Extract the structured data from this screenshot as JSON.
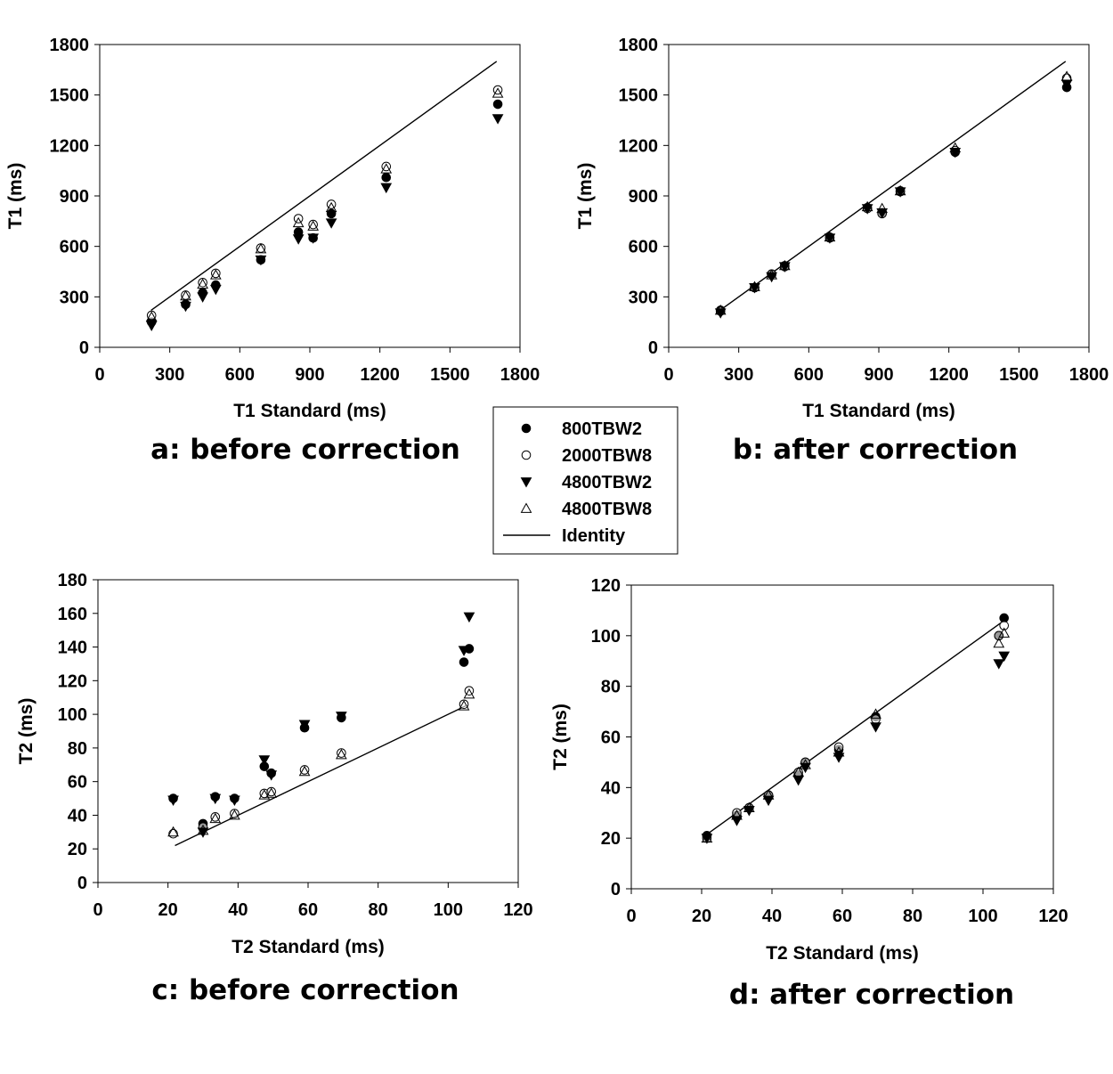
{
  "legend": {
    "entries": [
      {
        "key": "s800w2",
        "label": "800TBW2",
        "marker": "filled-circle"
      },
      {
        "key": "s2000w8",
        "label": "2000TBW8",
        "marker": "open-circle"
      },
      {
        "key": "s4800w2",
        "label": "4800TBW2",
        "marker": "filled-triangle-down"
      },
      {
        "key": "s4800w8",
        "label": "4800TBW8",
        "marker": "open-triangle-up"
      },
      {
        "key": "identity",
        "label": "Identity",
        "marker": "line"
      }
    ]
  },
  "chart_data": [
    {
      "id": "a",
      "type": "scatter",
      "caption": "a: before correction",
      "xlabel": "T1 Standard (ms)",
      "ylabel": "T1 (ms)",
      "xlim": [
        0,
        1800
      ],
      "ylim": [
        0,
        1800
      ],
      "xticks": [
        0,
        300,
        600,
        900,
        1200,
        1500,
        1800
      ],
      "yticks": [
        0,
        300,
        600,
        900,
        1200,
        1500,
        1800
      ],
      "identity": [
        220,
        1700
      ],
      "x": [
        222,
        368,
        441,
        497,
        690,
        851,
        914,
        992,
        1227,
        1705
      ],
      "series": [
        {
          "name": "800TBW2",
          "key": "s800w2",
          "values": [
            150,
            255,
            325,
            370,
            520,
            685,
            650,
            795,
            1010,
            1445
          ]
        },
        {
          "name": "2000TBW8",
          "key": "s2000w8",
          "values": [
            190,
            310,
            385,
            440,
            590,
            765,
            730,
            850,
            1075,
            1530
          ]
        },
        {
          "name": "4800TBW2",
          "key": "s4800w2",
          "values": [
            130,
            245,
            300,
            345,
            520,
            645,
            650,
            740,
            950,
            1360
          ]
        },
        {
          "name": "4800TBW8",
          "key": "s4800w8",
          "values": [
            180,
            305,
            375,
            430,
            585,
            740,
            720,
            830,
            1060,
            1510
          ]
        }
      ]
    },
    {
      "id": "b",
      "type": "scatter",
      "caption": "b: after correction",
      "xlabel": "T1 Standard (ms)",
      "ylabel": "T1 (ms)",
      "xlim": [
        0,
        1800
      ],
      "ylim": [
        0,
        1800
      ],
      "xticks": [
        0,
        300,
        600,
        900,
        1200,
        1500,
        1800
      ],
      "yticks": [
        0,
        300,
        600,
        900,
        1200,
        1500,
        1800
      ],
      "identity": [
        220,
        1700
      ],
      "x": [
        222,
        368,
        441,
        497,
        690,
        851,
        914,
        992,
        1227,
        1705
      ],
      "series": [
        {
          "name": "800TBW2",
          "key": "s800w2",
          "values": [
            220,
            355,
            435,
            485,
            650,
            830,
            800,
            925,
            1160,
            1545
          ]
        },
        {
          "name": "2000TBW8",
          "key": "s2000w8",
          "values": [
            215,
            355,
            435,
            480,
            655,
            825,
            795,
            930,
            1170,
            1600
          ]
        },
        {
          "name": "4800TBW2",
          "key": "s4800w2",
          "values": [
            205,
            355,
            420,
            480,
            650,
            825,
            800,
            925,
            1160,
            1565
          ]
        },
        {
          "name": "4800TBW8",
          "key": "s4800w8",
          "values": [
            220,
            360,
            430,
            485,
            655,
            835,
            825,
            930,
            1185,
            1610
          ]
        }
      ]
    },
    {
      "id": "c",
      "type": "scatter",
      "caption": "c: before correction",
      "xlabel": "T2 Standard (ms)",
      "ylabel": "T2 (ms)",
      "xlim": [
        0,
        120
      ],
      "ylim": [
        0,
        180
      ],
      "xticks": [
        0,
        20,
        40,
        60,
        80,
        100,
        120
      ],
      "yticks": [
        0,
        20,
        40,
        60,
        80,
        100,
        120,
        140,
        160,
        180
      ],
      "identity": [
        22,
        105
      ],
      "x": [
        21.5,
        30,
        33.5,
        39,
        47.5,
        49.5,
        59,
        69.5,
        104.5,
        106
      ],
      "series": [
        {
          "name": "800TBW2",
          "key": "s800w2",
          "values": [
            50,
            35,
            51,
            50,
            69,
            65,
            92,
            98,
            131,
            139
          ]
        },
        {
          "name": "2000TBW8",
          "key": "s2000w8",
          "values": [
            29,
            33,
            39,
            41,
            53,
            54,
            67,
            77,
            106,
            114
          ]
        },
        {
          "name": "4800TBW2",
          "key": "s4800w2",
          "values": [
            49,
            30,
            50,
            49,
            73,
            64,
            94,
            99,
            138,
            158
          ]
        },
        {
          "name": "4800TBW8",
          "key": "s4800w8",
          "values": [
            30,
            31,
            38,
            40,
            52,
            53,
            66,
            76,
            105,
            112
          ]
        }
      ]
    },
    {
      "id": "d",
      "type": "scatter",
      "caption": "d: after correction",
      "xlabel": "T2 Standard (ms)",
      "ylabel": "T2 (ms)",
      "xlim": [
        0,
        120
      ],
      "ylim": [
        0,
        120
      ],
      "xticks": [
        0,
        20,
        40,
        60,
        80,
        100,
        120
      ],
      "yticks": [
        0,
        20,
        40,
        60,
        80,
        100,
        120
      ],
      "identity": [
        22,
        106
      ],
      "x": [
        21.5,
        30,
        33.5,
        39,
        47.5,
        49.5,
        59,
        69.5,
        104.5,
        106
      ],
      "series": [
        {
          "name": "800TBW2",
          "key": "s800w2",
          "values": [
            21,
            29,
            32,
            37,
            45,
            50,
            55,
            68,
            100,
            107
          ]
        },
        {
          "name": "2000TBW8",
          "key": "s2000w8",
          "values": [
            20,
            30,
            32,
            37,
            46,
            50,
            56,
            67,
            100,
            104
          ]
        },
        {
          "name": "4800TBW2",
          "key": "s4800w2",
          "values": [
            20,
            27,
            31,
            35,
            43,
            48,
            52,
            64,
            89,
            92
          ]
        },
        {
          "name": "4800TBW8",
          "key": "s4800w8",
          "values": [
            20,
            29,
            32,
            37,
            46,
            49,
            54,
            69,
            97,
            101
          ]
        }
      ]
    }
  ]
}
